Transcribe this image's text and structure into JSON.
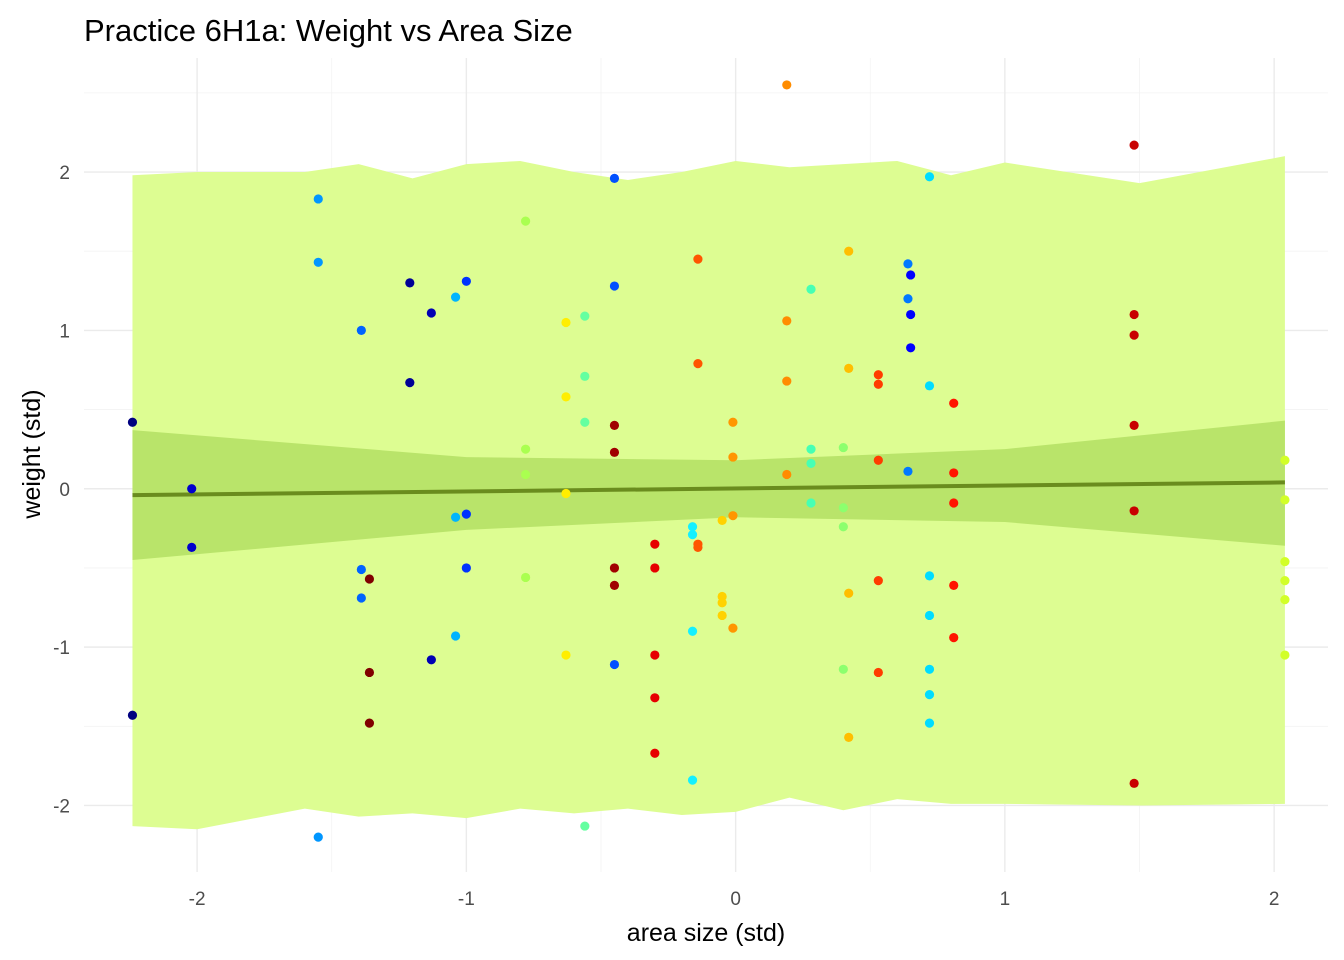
{
  "chart_data": {
    "type": "scatter",
    "title": "Practice 6H1a: Weight vs Area Size",
    "xlabel": "area size (std)",
    "ylabel": "weight (std)",
    "xlim": [
      -2.42,
      2.2
    ],
    "ylim": [
      -2.42,
      2.72
    ],
    "x_ticks": [
      -2,
      -1,
      0,
      1,
      2
    ],
    "x_tick_labels": [
      "-2",
      "-1",
      "0",
      "1",
      "2"
    ],
    "y_ticks": [
      -2,
      -1,
      0,
      1,
      2
    ],
    "y_tick_labels": [
      "-2",
      "-1",
      "0",
      "1",
      "2"
    ],
    "grid": true,
    "legend": "none",
    "colors": {
      "prediction_band": "#ddfd92",
      "mean_band": "#b9e46a",
      "mean_line": "#6a8c1e",
      "grid": "#ebebeb"
    },
    "regression_line": {
      "x": [
        -2.24,
        2.04
      ],
      "y": [
        -0.04,
        0.04
      ]
    },
    "mean_interval": {
      "x": [
        -2.24,
        -1.0,
        0.0,
        1.0,
        2.04
      ],
      "lower": [
        -0.45,
        -0.26,
        -0.18,
        -0.21,
        -0.36
      ],
      "upper": [
        0.37,
        0.2,
        0.18,
        0.25,
        0.43
      ]
    },
    "prediction_interval": {
      "x": [
        -2.24,
        -2.0,
        -1.6,
        -1.4,
        -1.2,
        -1.0,
        -0.8,
        -0.6,
        -0.4,
        -0.2,
        0.0,
        0.2,
        0.4,
        0.6,
        0.8,
        1.0,
        1.5,
        2.04
      ],
      "lower": [
        -2.13,
        -2.15,
        -2.02,
        -2.07,
        -2.05,
        -2.08,
        -2.02,
        -2.05,
        -2.02,
        -2.06,
        -2.04,
        -1.95,
        -2.03,
        -1.96,
        -1.99,
        -1.99,
        -2.0,
        -1.99
      ],
      "upper": [
        1.98,
        2.0,
        2.0,
        2.05,
        1.96,
        2.05,
        2.07,
        2.0,
        1.95,
        2.0,
        2.07,
        2.03,
        2.05,
        2.07,
        1.98,
        2.06,
        1.93,
        2.1
      ]
    },
    "series": [
      {
        "values": [
          {
            "x": -2.24,
            "y": 0.42,
            "c": "#000080"
          },
          {
            "x": -2.24,
            "y": -1.43,
            "c": "#000080"
          },
          {
            "x": -2.02,
            "y": 0.0,
            "c": "#0000cd"
          },
          {
            "x": -2.02,
            "y": -0.37,
            "c": "#0000cd"
          },
          {
            "x": -1.55,
            "y": 1.83,
            "c": "#0096ff"
          },
          {
            "x": -1.55,
            "y": 1.43,
            "c": "#0096ff"
          },
          {
            "x": -1.55,
            "y": -2.2,
            "c": "#0096ff"
          },
          {
            "x": -1.39,
            "y": 1.0,
            "c": "#0064ff"
          },
          {
            "x": -1.39,
            "y": -0.51,
            "c": "#0064ff"
          },
          {
            "x": -1.39,
            "y": -0.69,
            "c": "#0064ff"
          },
          {
            "x": -1.36,
            "y": -0.57,
            "c": "#800000"
          },
          {
            "x": -1.36,
            "y": -1.16,
            "c": "#800000"
          },
          {
            "x": -1.36,
            "y": -1.48,
            "c": "#800000"
          },
          {
            "x": -1.21,
            "y": 1.3,
            "c": "#000096"
          },
          {
            "x": -1.21,
            "y": 0.67,
            "c": "#000096"
          },
          {
            "x": -1.13,
            "y": 1.11,
            "c": "#0000b4"
          },
          {
            "x": -1.13,
            "y": -1.08,
            "c": "#0000b4"
          },
          {
            "x": -1.04,
            "y": 1.21,
            "c": "#00b4ff"
          },
          {
            "x": -1.04,
            "y": -0.18,
            "c": "#00b4ff"
          },
          {
            "x": -1.04,
            "y": -0.93,
            "c": "#00b4ff"
          },
          {
            "x": -1.0,
            "y": 1.31,
            "c": "#0032ff"
          },
          {
            "x": -1.0,
            "y": -0.16,
            "c": "#0032ff"
          },
          {
            "x": -1.0,
            "y": -0.5,
            "c": "#0032ff"
          },
          {
            "x": -0.78,
            "y": 1.69,
            "c": "#aaff50"
          },
          {
            "x": -0.78,
            "y": 0.25,
            "c": "#aaff50"
          },
          {
            "x": -0.78,
            "y": 0.09,
            "c": "#aaff50"
          },
          {
            "x": -0.78,
            "y": -0.56,
            "c": "#aaff50"
          },
          {
            "x": -0.63,
            "y": 1.05,
            "c": "#ffee00"
          },
          {
            "x": -0.63,
            "y": 0.58,
            "c": "#ffee00"
          },
          {
            "x": -0.63,
            "y": -0.03,
            "c": "#ffee00"
          },
          {
            "x": -0.63,
            "y": -1.05,
            "c": "#ffee00"
          },
          {
            "x": -0.56,
            "y": 1.09,
            "c": "#64ffa0"
          },
          {
            "x": -0.56,
            "y": 0.71,
            "c": "#64ffa0"
          },
          {
            "x": -0.56,
            "y": 0.42,
            "c": "#64ffa0"
          },
          {
            "x": -0.56,
            "y": -2.13,
            "c": "#64ffa0"
          },
          {
            "x": -0.45,
            "y": 1.96,
            "c": "#0050ff"
          },
          {
            "x": -0.45,
            "y": 1.28,
            "c": "#0050ff"
          },
          {
            "x": -0.45,
            "y": -1.11,
            "c": "#0050ff"
          },
          {
            "x": -0.45,
            "y": 0.4,
            "c": "#a00000"
          },
          {
            "x": -0.45,
            "y": 0.23,
            "c": "#a00000"
          },
          {
            "x": -0.45,
            "y": -0.5,
            "c": "#a00000"
          },
          {
            "x": -0.45,
            "y": -0.61,
            "c": "#a00000"
          },
          {
            "x": -0.3,
            "y": -0.35,
            "c": "#e60000"
          },
          {
            "x": -0.3,
            "y": -0.5,
            "c": "#e60000"
          },
          {
            "x": -0.3,
            "y": -1.05,
            "c": "#e60000"
          },
          {
            "x": -0.3,
            "y": -1.32,
            "c": "#e60000"
          },
          {
            "x": -0.3,
            "y": -1.67,
            "c": "#e60000"
          },
          {
            "x": -0.16,
            "y": -0.24,
            "c": "#14f0ff"
          },
          {
            "x": -0.16,
            "y": -0.29,
            "c": "#14f0ff"
          },
          {
            "x": -0.16,
            "y": -0.9,
            "c": "#14f0ff"
          },
          {
            "x": -0.16,
            "y": -1.84,
            "c": "#14f0ff"
          },
          {
            "x": -0.14,
            "y": 1.45,
            "c": "#ff5500"
          },
          {
            "x": -0.14,
            "y": 0.79,
            "c": "#ff5500"
          },
          {
            "x": -0.14,
            "y": -0.35,
            "c": "#ff5500"
          },
          {
            "x": -0.14,
            "y": -0.37,
            "c": "#ff5500"
          },
          {
            "x": -0.05,
            "y": -0.2,
            "c": "#ffd200"
          },
          {
            "x": -0.05,
            "y": -0.68,
            "c": "#ffd200"
          },
          {
            "x": -0.05,
            "y": -0.72,
            "c": "#ffd200"
          },
          {
            "x": -0.05,
            "y": -0.8,
            "c": "#ffd200"
          },
          {
            "x": -0.01,
            "y": 0.42,
            "c": "#ff9600"
          },
          {
            "x": -0.01,
            "y": 0.2,
            "c": "#ff9600"
          },
          {
            "x": -0.01,
            "y": -0.17,
            "c": "#ff9600"
          },
          {
            "x": -0.01,
            "y": -0.88,
            "c": "#ff9600"
          },
          {
            "x": 0.19,
            "y": 2.55,
            "c": "#ff8c00"
          },
          {
            "x": 0.19,
            "y": 1.06,
            "c": "#ff8c00"
          },
          {
            "x": 0.19,
            "y": 0.68,
            "c": "#ff8c00"
          },
          {
            "x": 0.19,
            "y": 0.09,
            "c": "#ff8c00"
          },
          {
            "x": 0.28,
            "y": 1.26,
            "c": "#46ffb4"
          },
          {
            "x": 0.28,
            "y": 0.25,
            "c": "#46ffb4"
          },
          {
            "x": 0.28,
            "y": 0.16,
            "c": "#46ffb4"
          },
          {
            "x": 0.28,
            "y": -0.09,
            "c": "#46ffb4"
          },
          {
            "x": 0.4,
            "y": 0.26,
            "c": "#8cff6e"
          },
          {
            "x": 0.4,
            "y": -0.12,
            "c": "#8cff6e"
          },
          {
            "x": 0.4,
            "y": -0.24,
            "c": "#8cff6e"
          },
          {
            "x": 0.4,
            "y": -1.14,
            "c": "#8cff6e"
          },
          {
            "x": 0.42,
            "y": 1.5,
            "c": "#ffbe00"
          },
          {
            "x": 0.42,
            "y": 0.76,
            "c": "#ffbe00"
          },
          {
            "x": 0.42,
            "y": -0.66,
            "c": "#ffbe00"
          },
          {
            "x": 0.42,
            "y": -1.57,
            "c": "#ffbe00"
          },
          {
            "x": 0.53,
            "y": 0.72,
            "c": "#ff3c00"
          },
          {
            "x": 0.53,
            "y": 0.66,
            "c": "#ff3c00"
          },
          {
            "x": 0.53,
            "y": 0.18,
            "c": "#ff3c00"
          },
          {
            "x": 0.53,
            "y": -0.58,
            "c": "#ff3c00"
          },
          {
            "x": 0.53,
            "y": -1.16,
            "c": "#ff3c00"
          },
          {
            "x": 0.64,
            "y": 1.42,
            "c": "#0078ff"
          },
          {
            "x": 0.64,
            "y": 1.2,
            "c": "#0078ff"
          },
          {
            "x": 0.64,
            "y": 0.11,
            "c": "#0078ff"
          },
          {
            "x": 0.65,
            "y": 1.35,
            "c": "#0000ff"
          },
          {
            "x": 0.65,
            "y": 1.1,
            "c": "#0000ff"
          },
          {
            "x": 0.65,
            "y": 0.89,
            "c": "#0000ff"
          },
          {
            "x": 0.72,
            "y": 1.97,
            "c": "#00dcff"
          },
          {
            "x": 0.72,
            "y": 0.65,
            "c": "#00dcff"
          },
          {
            "x": 0.72,
            "y": -0.55,
            "c": "#00dcff"
          },
          {
            "x": 0.72,
            "y": -0.8,
            "c": "#00dcff"
          },
          {
            "x": 0.72,
            "y": -1.14,
            "c": "#00dcff"
          },
          {
            "x": 0.72,
            "y": -1.3,
            "c": "#00dcff"
          },
          {
            "x": 0.72,
            "y": -1.48,
            "c": "#00dcff"
          },
          {
            "x": 0.81,
            "y": 0.54,
            "c": "#ff1400"
          },
          {
            "x": 0.81,
            "y": 0.1,
            "c": "#ff1400"
          },
          {
            "x": 0.81,
            "y": -0.09,
            "c": "#ff1400"
          },
          {
            "x": 0.81,
            "y": -0.61,
            "c": "#ff1400"
          },
          {
            "x": 0.81,
            "y": -0.94,
            "c": "#ff1400"
          },
          {
            "x": 1.48,
            "y": 2.17,
            "c": "#c80000"
          },
          {
            "x": 1.48,
            "y": 1.1,
            "c": "#c80000"
          },
          {
            "x": 1.48,
            "y": 0.97,
            "c": "#c80000"
          },
          {
            "x": 1.48,
            "y": 0.4,
            "c": "#c80000"
          },
          {
            "x": 1.48,
            "y": -0.14,
            "c": "#c80000"
          },
          {
            "x": 1.48,
            "y": -1.86,
            "c": "#c80000"
          },
          {
            "x": 2.04,
            "y": 0.18,
            "c": "#d2ff28"
          },
          {
            "x": 2.04,
            "y": -0.07,
            "c": "#d2ff28"
          },
          {
            "x": 2.04,
            "y": -0.46,
            "c": "#d2ff28"
          },
          {
            "x": 2.04,
            "y": -0.58,
            "c": "#d2ff28"
          },
          {
            "x": 2.04,
            "y": -0.7,
            "c": "#d2ff28"
          },
          {
            "x": 2.04,
            "y": -1.05,
            "c": "#d2ff28"
          }
        ]
      }
    ]
  }
}
